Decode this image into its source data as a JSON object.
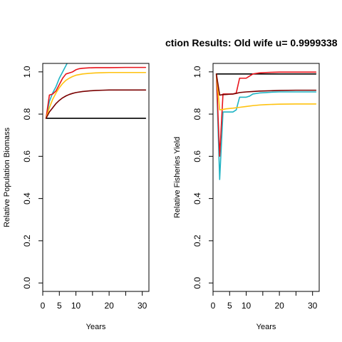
{
  "title": "ction Results: Old wife u= 0.9999338",
  "colors": {
    "black": "#000000",
    "red": "#e8141c",
    "gold": "#ffc20e",
    "teal": "#1fb3c4",
    "darkred": "#7a0000"
  },
  "chart_data": [
    {
      "type": "line",
      "xlabel": "Years",
      "ylabel": "Relative Population Biomass",
      "xlim": [
        0,
        32
      ],
      "ylim": [
        -0.04,
        1.04
      ],
      "xticks": [
        0,
        5,
        10,
        15,
        20,
        25,
        30
      ],
      "xtick_labels": [
        "0",
        "5",
        "10",
        "",
        "20",
        "",
        "30"
      ],
      "yticks": [
        0.0,
        0.2,
        0.4,
        0.6,
        0.8,
        1.0
      ],
      "ytick_labels": [
        "0.0",
        "0.2",
        "0.4",
        "0.6",
        "0.8",
        "1.0"
      ],
      "series": [
        {
          "color": "black",
          "x": [
            1,
            31
          ],
          "y": [
            0.78,
            0.78
          ]
        },
        {
          "color": "teal",
          "x": [
            1,
            2,
            3,
            4,
            5,
            6,
            7,
            8
          ],
          "y": [
            0.78,
            0.86,
            0.9,
            0.93,
            0.97,
            1.0,
            1.03,
            1.06
          ]
        },
        {
          "color": "red",
          "x": [
            1,
            2,
            3,
            4,
            5,
            6,
            7,
            8,
            9,
            10,
            11,
            12,
            14,
            16,
            18,
            20,
            25,
            31
          ],
          "y": [
            0.78,
            0.89,
            0.895,
            0.91,
            0.94,
            0.97,
            0.99,
            0.995,
            1.0,
            1.01,
            1.015,
            1.017,
            1.019,
            1.02,
            1.02,
            1.02,
            1.021,
            1.021
          ]
        },
        {
          "color": "gold",
          "x": [
            1,
            2,
            3,
            4,
            5,
            6,
            7,
            8,
            9,
            10,
            12,
            14,
            16,
            18,
            20,
            25,
            31
          ],
          "y": [
            0.78,
            0.83,
            0.87,
            0.9,
            0.925,
            0.945,
            0.96,
            0.97,
            0.978,
            0.984,
            0.99,
            0.993,
            0.995,
            0.996,
            0.997,
            0.997,
            0.997
          ]
        },
        {
          "color": "darkred",
          "x": [
            1,
            2,
            3,
            4,
            5,
            6,
            7,
            8,
            9,
            10,
            12,
            14,
            16,
            18,
            20,
            25,
            31
          ],
          "y": [
            0.78,
            0.81,
            0.83,
            0.85,
            0.865,
            0.877,
            0.886,
            0.893,
            0.898,
            0.902,
            0.907,
            0.91,
            0.912,
            0.913,
            0.914,
            0.914,
            0.914
          ]
        }
      ]
    },
    {
      "type": "line",
      "xlabel": "Years",
      "ylabel": "Relative Fisheries Yield",
      "xlim": [
        0,
        32
      ],
      "ylim": [
        -0.04,
        1.04
      ],
      "xticks": [
        0,
        5,
        10,
        15,
        20,
        25,
        30
      ],
      "xtick_labels": [
        "0",
        "5",
        "10",
        "",
        "20",
        "",
        "30"
      ],
      "yticks": [
        0.0,
        0.2,
        0.4,
        0.6,
        0.8,
        1.0
      ],
      "ytick_labels": [
        "0.0",
        "0.2",
        "0.4",
        "0.6",
        "0.8",
        "1.0"
      ],
      "series": [
        {
          "color": "black",
          "x": [
            1,
            31
          ],
          "y": [
            0.99,
            0.99
          ]
        },
        {
          "color": "teal",
          "x": [
            1,
            2,
            3,
            4,
            5,
            6,
            7,
            8,
            9,
            10,
            11,
            12,
            14,
            16,
            18,
            20,
            25,
            31
          ],
          "y": [
            0.99,
            0.49,
            0.81,
            0.81,
            0.81,
            0.81,
            0.82,
            0.88,
            0.88,
            0.88,
            0.885,
            0.895,
            0.9,
            0.902,
            0.904,
            0.905,
            0.905,
            0.905
          ]
        },
        {
          "color": "red",
          "x": [
            1,
            2,
            3,
            4,
            5,
            6,
            7,
            8,
            9,
            10,
            11,
            12,
            14,
            16,
            18,
            20,
            25,
            31
          ],
          "y": [
            0.99,
            0.6,
            0.895,
            0.895,
            0.895,
            0.895,
            0.9,
            0.97,
            0.97,
            0.97,
            0.98,
            0.99,
            0.995,
            0.997,
            0.998,
            0.999,
            0.999,
            0.999
          ]
        },
        {
          "color": "gold",
          "x": [
            1,
            2,
            3,
            4,
            6,
            8,
            10,
            12,
            14,
            16,
            20,
            25,
            31
          ],
          "y": [
            0.99,
            0.82,
            0.822,
            0.825,
            0.828,
            0.832,
            0.836,
            0.84,
            0.843,
            0.845,
            0.847,
            0.848,
            0.848
          ]
        },
        {
          "color": "darkred",
          "x": [
            1,
            2,
            3,
            4,
            5,
            6,
            7,
            8,
            10,
            12,
            14,
            16,
            20,
            25,
            31
          ],
          "y": [
            0.99,
            0.89,
            0.892,
            0.893,
            0.894,
            0.895,
            0.898,
            0.902,
            0.905,
            0.907,
            0.909,
            0.91,
            0.912,
            0.913,
            0.913
          ]
        }
      ]
    }
  ]
}
